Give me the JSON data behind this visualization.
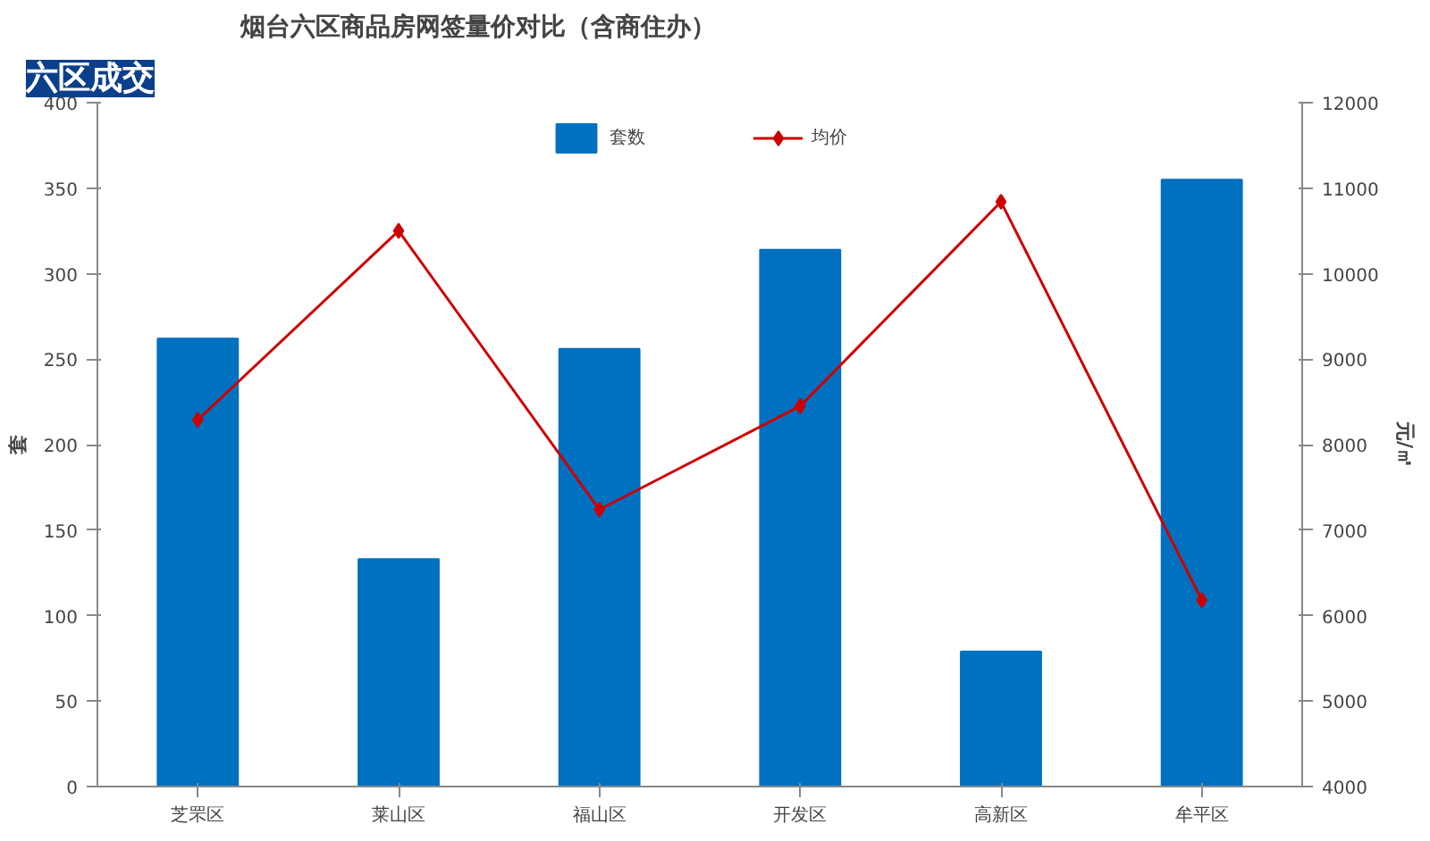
{
  "chart_data": {
    "type": "bar",
    "title": "烟台六区商品房网签量价对比（含商住办）",
    "annotations": [
      "六区成交"
    ],
    "ylabel": "套",
    "y2label": "元/㎡",
    "categories": [
      "芝罘区",
      "莱山区",
      "福山区",
      "开发区",
      "高新区",
      "牟平区"
    ],
    "series": [
      {
        "name": "套数",
        "color": "#0070c0",
        "values": [
          262,
          133,
          256,
          314,
          79,
          355
        ]
      },
      {
        "name": "均价",
        "type": "line",
        "axis": "y2",
        "color": "#cc0000",
        "marker": "diamond",
        "values": [
          8290,
          10500,
          7240,
          8450,
          10840,
          6180
        ]
      }
    ],
    "ylim": [
      0,
      400
    ],
    "yticks": [
      0,
      50,
      100,
      150,
      200,
      250,
      300,
      350,
      400
    ],
    "y2lim": [
      4000,
      12000
    ],
    "y2ticks": [
      4000,
      5000,
      6000,
      7000,
      8000,
      9000,
      10000,
      11000,
      12000
    ],
    "legend": "top",
    "grid": false
  }
}
